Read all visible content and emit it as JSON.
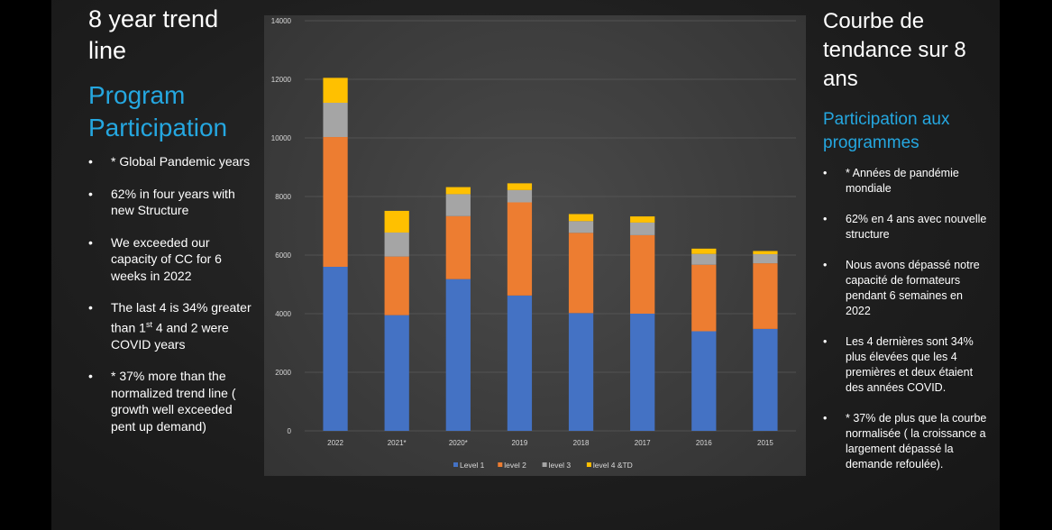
{
  "left": {
    "title": "8 year trend line",
    "subtitle": "Program Participation",
    "bullets": [
      {
        "pre": "* Global Pandemic years",
        "sup": "",
        "post": ""
      },
      {
        "pre": "62% in four years with new Structure",
        "sup": "",
        "post": ""
      },
      {
        "pre": "We exceeded our capacity of CC for 6 weeks in 2022",
        "sup": "",
        "post": ""
      },
      {
        "pre": "The last 4 is 34% greater than 1",
        "sup": "st",
        "post": " 4 and 2 were COVID years"
      },
      {
        "pre": "* 37% more than the normalized trend line ( growth well exceeded pent up demand)",
        "sup": "",
        "post": ""
      }
    ]
  },
  "right": {
    "title": "Courbe de tendance sur 8 ans",
    "subtitle": "Participation aux programmes",
    "bullets": [
      "* Années de pandémie mondiale",
      "62% en 4 ans avec nouvelle structure",
      "Nous avons dépassé notre capacité de formateurs pendant 6 semaines en 2022",
      "Les 4 dernières sont 34% plus élevées que les 4 premières et deux étaient des années COVID.",
      "* 37% de plus que la courbe normalisée ( la croissance a largement dépassé la demande refoulée)."
    ]
  },
  "chart_data": {
    "type": "bar",
    "stacked": true,
    "categories": [
      "2022",
      "2021*",
      "2020*",
      "2019",
      "2018",
      "2017",
      "2016",
      "2015"
    ],
    "series": [
      {
        "name": "Level 1",
        "color": "#4472c4",
        "values": [
          5600,
          3950,
          5180,
          4620,
          4020,
          4000,
          3400,
          3480
        ]
      },
      {
        "name": "level 2",
        "color": "#ed7d31",
        "values": [
          4430,
          2000,
          2150,
          3180,
          2740,
          2680,
          2270,
          2240
        ]
      },
      {
        "name": "level 3",
        "color": "#a5a5a5",
        "values": [
          1170,
          820,
          750,
          420,
          400,
          430,
          370,
          310
        ]
      },
      {
        "name": "level 4 &TD",
        "color": "#ffc000",
        "values": [
          850,
          740,
          240,
          230,
          240,
          210,
          180,
          110
        ]
      }
    ],
    "yticks": [
      0,
      2000,
      4000,
      6000,
      8000,
      10000,
      12000,
      14000
    ],
    "ylim": [
      0,
      14000
    ],
    "grid": true,
    "legend_position": "bottom"
  }
}
